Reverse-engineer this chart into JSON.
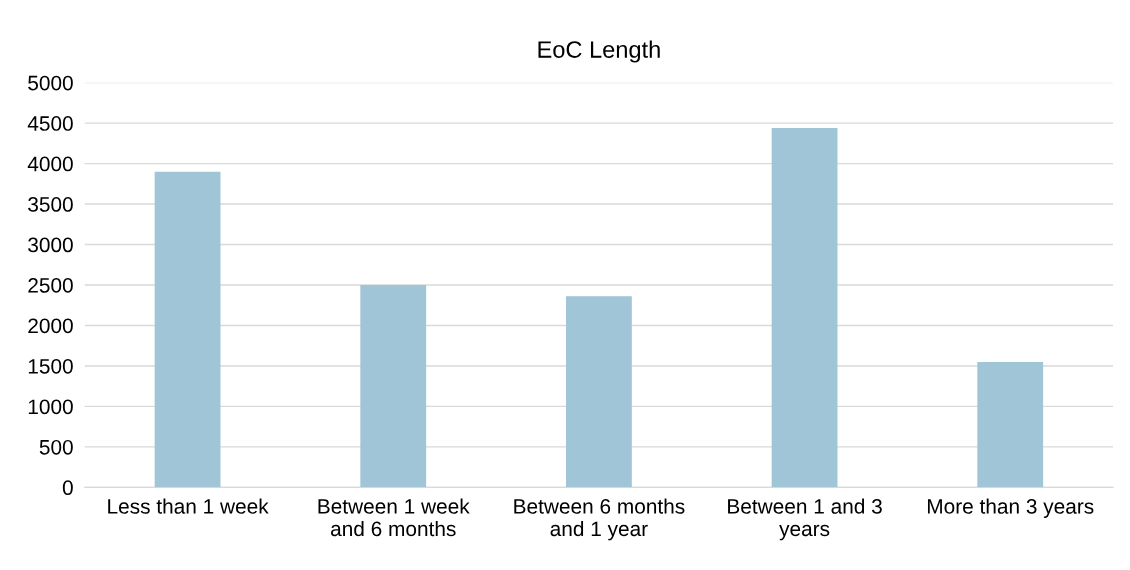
{
  "chart_data": {
    "type": "bar",
    "title": "EoC Length",
    "categories": [
      "Less than 1 week",
      "Between 1 week\nand 6 months",
      "Between 6 months\nand 1 year",
      "Between 1 and 3\nyears",
      "More than 3 years"
    ],
    "values": [
      3900,
      2500,
      2360,
      4440,
      1550
    ],
    "color": "#9fc5d7",
    "ylim": [
      0,
      5000
    ],
    "yticks": [
      0,
      500,
      1000,
      1500,
      2000,
      2500,
      3000,
      3500,
      4000,
      4500,
      5000
    ],
    "grid": "y",
    "legend": false
  }
}
